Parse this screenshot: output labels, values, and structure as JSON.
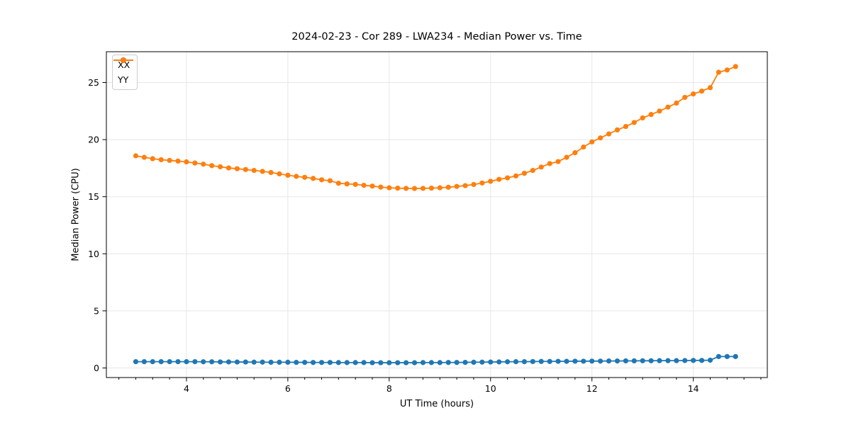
{
  "figure": {
    "title": "2024-02-23 - Cor 289 - LWA234 - Median Power vs. Time"
  },
  "chart_data": {
    "type": "line",
    "title": "2024-02-23 - Cor 289 - LWA234 - Median Power vs. Time",
    "xlabel": "UT Time (hours)",
    "ylabel": "Median Power (CPU)",
    "xlim": [
      2.42,
      15.46
    ],
    "ylim": [
      -0.84,
      27.7
    ],
    "x_ticks": [
      4,
      6,
      8,
      10,
      12,
      14
    ],
    "x_minor_step": 0.33333,
    "y_ticks": [
      0,
      5,
      10,
      15,
      20,
      25
    ],
    "grid": true,
    "legend_position": "upper left",
    "marker": "o",
    "x": [
      3.0,
      3.167,
      3.333,
      3.5,
      3.667,
      3.833,
      4.0,
      4.167,
      4.333,
      4.5,
      4.667,
      4.833,
      5.0,
      5.167,
      5.333,
      5.5,
      5.667,
      5.833,
      6.0,
      6.167,
      6.333,
      6.5,
      6.667,
      6.833,
      7.0,
      7.167,
      7.333,
      7.5,
      7.667,
      7.833,
      8.0,
      8.167,
      8.333,
      8.5,
      8.667,
      8.833,
      9.0,
      9.167,
      9.333,
      9.5,
      9.667,
      9.833,
      10.0,
      10.167,
      10.333,
      10.5,
      10.667,
      10.833,
      11.0,
      11.167,
      11.333,
      11.5,
      11.667,
      11.833,
      12.0,
      12.167,
      12.333,
      12.5,
      12.667,
      12.833,
      13.0,
      13.167,
      13.333,
      13.5,
      13.667,
      13.833,
      14.0,
      14.167,
      14.333,
      14.5,
      14.667,
      14.833
    ],
    "series": [
      {
        "name": "XX",
        "color": "#1f77b4",
        "values": [
          0.55,
          0.55,
          0.55,
          0.55,
          0.55,
          0.55,
          0.55,
          0.55,
          0.54,
          0.54,
          0.53,
          0.53,
          0.52,
          0.52,
          0.51,
          0.51,
          0.5,
          0.5,
          0.5,
          0.49,
          0.49,
          0.48,
          0.48,
          0.48,
          0.47,
          0.47,
          0.47,
          0.47,
          0.46,
          0.46,
          0.46,
          0.46,
          0.46,
          0.46,
          0.47,
          0.47,
          0.47,
          0.48,
          0.48,
          0.49,
          0.5,
          0.51,
          0.52,
          0.53,
          0.54,
          0.55,
          0.55,
          0.56,
          0.57,
          0.57,
          0.58,
          0.58,
          0.59,
          0.59,
          0.6,
          0.6,
          0.61,
          0.61,
          0.62,
          0.62,
          0.63,
          0.63,
          0.64,
          0.64,
          0.64,
          0.65,
          0.66,
          0.66,
          0.68,
          1.0,
          1.0,
          1.0
        ]
      },
      {
        "name": "YY",
        "color": "#ff7f0e",
        "values": [
          18.58,
          18.45,
          18.33,
          18.24,
          18.18,
          18.12,
          18.05,
          17.95,
          17.85,
          17.72,
          17.62,
          17.52,
          17.45,
          17.38,
          17.3,
          17.22,
          17.12,
          17.0,
          16.88,
          16.78,
          16.7,
          16.6,
          16.48,
          16.4,
          16.18,
          16.12,
          16.08,
          16.0,
          15.93,
          15.84,
          15.78,
          15.75,
          15.73,
          15.72,
          15.73,
          15.75,
          15.78,
          15.83,
          15.9,
          15.97,
          16.07,
          16.2,
          16.35,
          16.52,
          16.65,
          16.82,
          17.05,
          17.3,
          17.6,
          17.9,
          18.08,
          18.45,
          18.85,
          19.35,
          19.8,
          20.15,
          20.5,
          20.85,
          21.15,
          21.5,
          21.9,
          22.2,
          22.5,
          22.85,
          23.2,
          23.7,
          24.0,
          24.25,
          24.55,
          25.9,
          26.1,
          26.4
        ]
      }
    ]
  }
}
